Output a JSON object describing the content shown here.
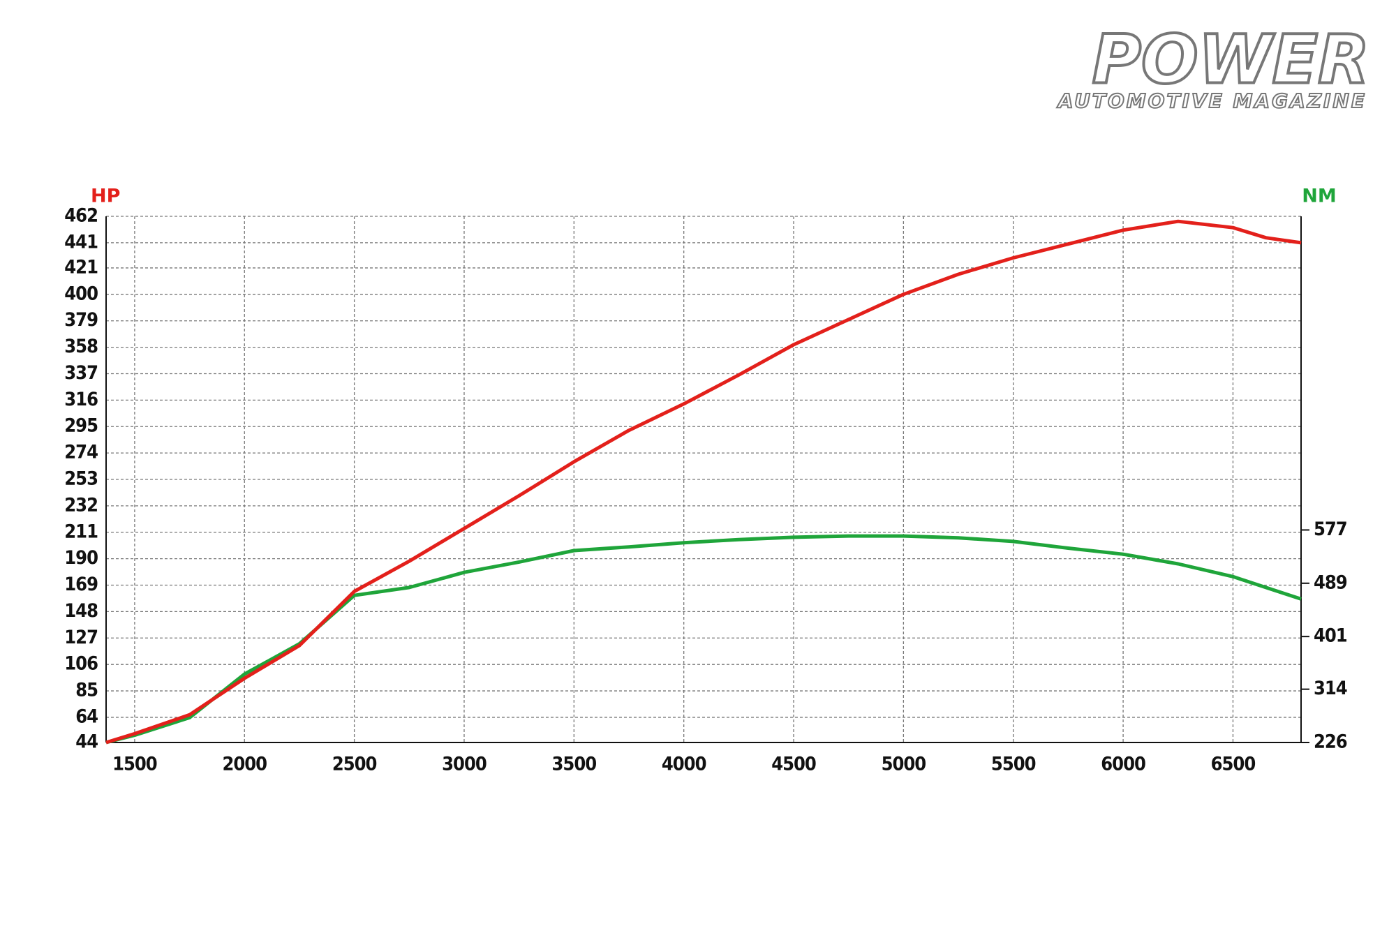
{
  "logo": {
    "title": "POWER",
    "subtitle": "AUTOMOTIVE MAGAZINE"
  },
  "chart_data": {
    "type": "line",
    "y_label": "HP",
    "y2_label": "NM",
    "x": [
      1370,
      1500,
      1750,
      2000,
      2250,
      2500,
      2750,
      3000,
      3250,
      3500,
      3750,
      4000,
      4250,
      4500,
      4750,
      5000,
      5250,
      5500,
      5750,
      6000,
      6250,
      6500,
      6650,
      6810
    ],
    "series": [
      {
        "name": "HP",
        "color": "#e3201b",
        "values": [
          44,
          51,
          66,
          95,
          121,
          164,
          188,
          214,
          240,
          267,
          292,
          313,
          336,
          360,
          380,
          400,
          416,
          429,
          440,
          451,
          458,
          453,
          445,
          441
        ]
      },
      {
        "name": "NM",
        "color": "#1fa53a",
        "axis": "y2",
        "values": [
          226,
          238,
          267,
          339,
          389,
          469,
          482,
          507,
          524,
          543,
          549,
          556,
          561,
          565,
          567,
          567,
          564,
          558,
          547,
          537,
          521,
          500,
          482,
          463
        ]
      }
    ],
    "xlim": [
      1370,
      6810
    ],
    "xticks": [
      1500,
      2000,
      2500,
      3000,
      3500,
      4000,
      4500,
      5000,
      5500,
      6000,
      6500
    ],
    "ylim": [
      44,
      462
    ],
    "yticks": [
      44,
      64,
      85,
      106,
      127,
      148,
      169,
      190,
      211,
      232,
      253,
      274,
      295,
      316,
      337,
      358,
      379,
      400,
      421,
      441,
      462
    ],
    "y2lim": [
      226,
      1095
    ],
    "y2ticks": [
      226,
      314,
      401,
      489,
      577
    ],
    "grid": true
  }
}
